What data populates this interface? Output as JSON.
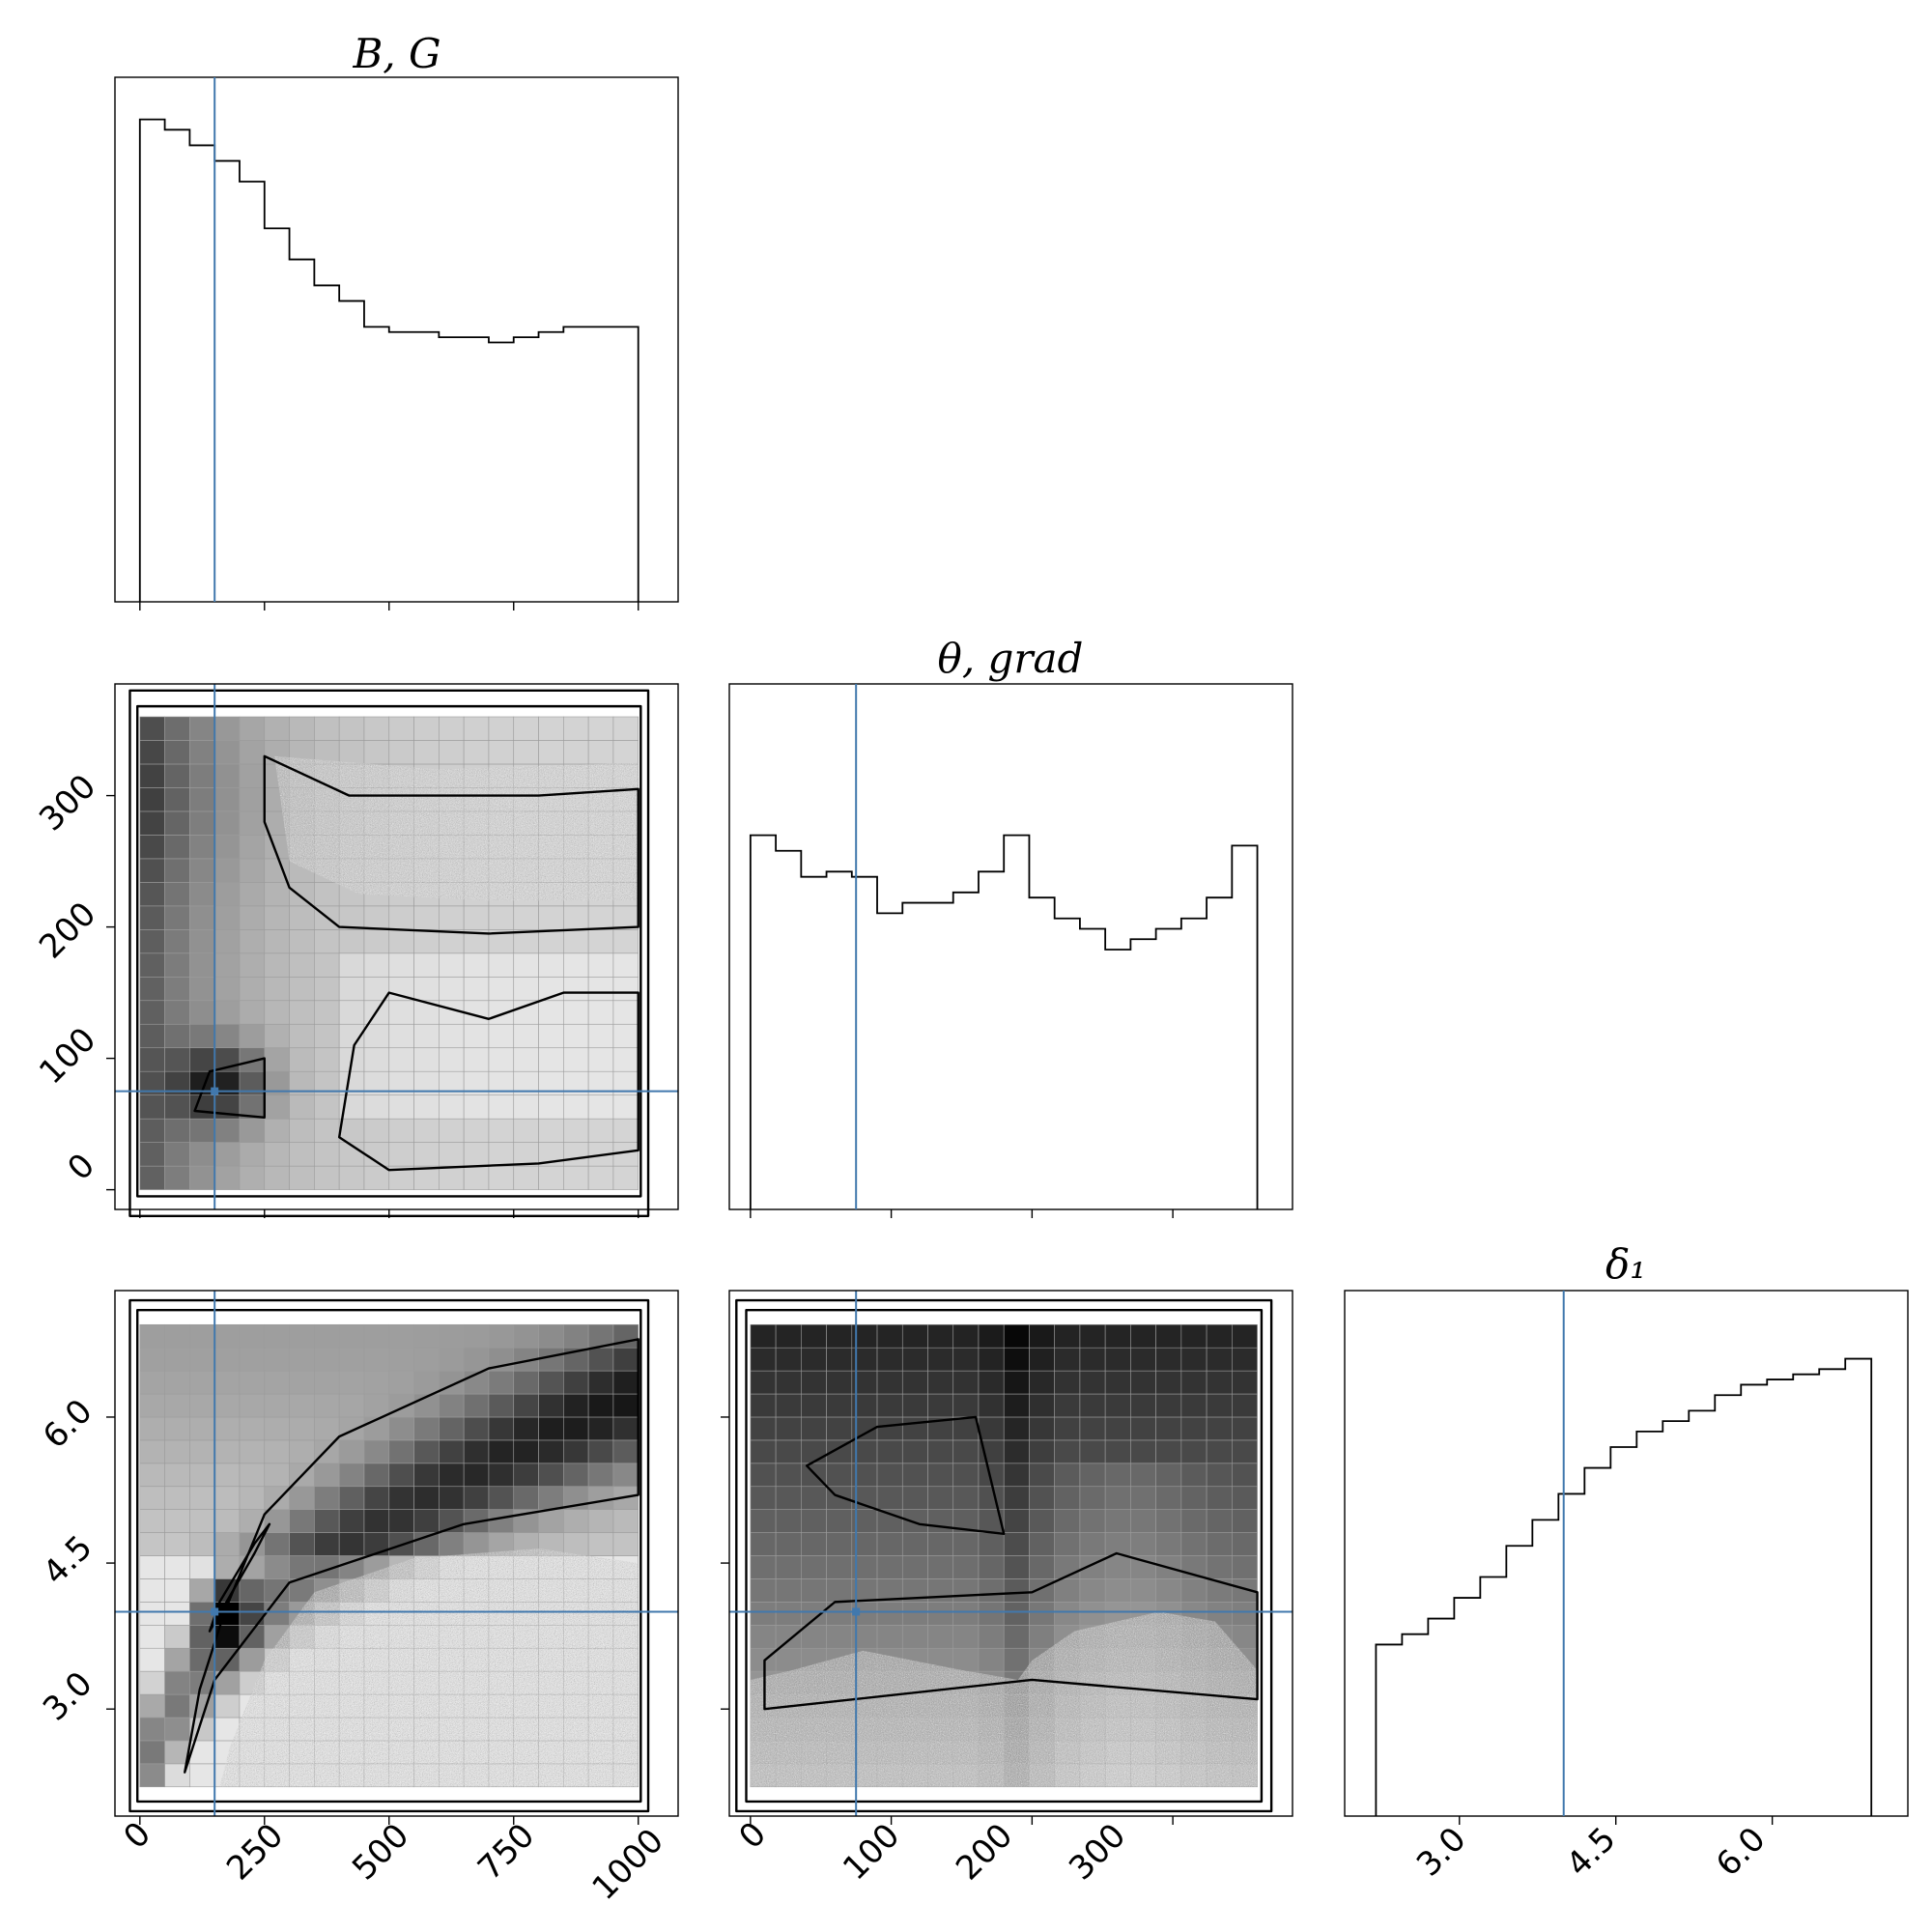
{
  "chart_data": {
    "type": "corner",
    "parameters": [
      {
        "key": "BG",
        "title": "B, G",
        "range": [
          -50,
          1080
        ],
        "ticks": [
          0,
          250,
          500,
          750,
          1000
        ],
        "tick_labels": [
          "0",
          "250",
          "500",
          "750",
          "1000"
        ],
        "truth": 150
      },
      {
        "key": "theta",
        "title": "θ, grad",
        "range": [
          -15,
          385
        ],
        "ticks": [
          0,
          100,
          200,
          300
        ],
        "tick_labels": [
          "0",
          "100",
          "200",
          "300"
        ],
        "truth": 75
      },
      {
        "key": "delta1",
        "title": "δ₁",
        "range": [
          1.9,
          7.3
        ],
        "ticks": [
          3.0,
          4.5,
          6.0
        ],
        "tick_labels": [
          "3.0",
          "4.5",
          "6.0"
        ],
        "truth": 4.0
      }
    ],
    "histograms": {
      "BG": {
        "edges": [
          0,
          50,
          100,
          150,
          200,
          250,
          300,
          350,
          400,
          450,
          500,
          550,
          600,
          650,
          700,
          750,
          800,
          850,
          900,
          950,
          1000
        ],
        "counts": [
          0.93,
          0.91,
          0.88,
          0.85,
          0.81,
          0.72,
          0.66,
          0.61,
          0.58,
          0.53,
          0.52,
          0.52,
          0.51,
          0.51,
          0.5,
          0.51,
          0.52,
          0.53,
          0.53,
          0.53
        ]
      },
      "theta": {
        "edges": [
          0,
          18,
          36,
          54,
          72,
          90,
          108,
          126,
          144,
          162,
          180,
          198,
          216,
          234,
          252,
          270,
          288,
          306,
          324,
          342,
          360
        ],
        "counts": [
          0.72,
          0.69,
          0.64,
          0.65,
          0.64,
          0.57,
          0.59,
          0.59,
          0.61,
          0.65,
          0.72,
          0.6,
          0.56,
          0.54,
          0.5,
          0.52,
          0.54,
          0.56,
          0.6,
          0.7
        ]
      },
      "delta1": {
        "edges": [
          2.2,
          2.45,
          2.7,
          2.95,
          3.2,
          3.45,
          3.7,
          3.95,
          4.2,
          4.45,
          4.7,
          4.95,
          5.2,
          5.45,
          5.7,
          5.95,
          6.2,
          6.45,
          6.7,
          6.95
        ],
        "counts": [
          0.33,
          0.35,
          0.38,
          0.42,
          0.46,
          0.52,
          0.57,
          0.62,
          0.67,
          0.71,
          0.74,
          0.76,
          0.78,
          0.81,
          0.83,
          0.84,
          0.85,
          0.86,
          0.88
        ]
      }
    },
    "truth_point_style": "thin blue crosshair lines",
    "grid": false
  },
  "colors": {
    "truth": "#4178ad",
    "contour": "#000000",
    "density_dark": "#000000",
    "density_light": "#f2f2f2"
  }
}
